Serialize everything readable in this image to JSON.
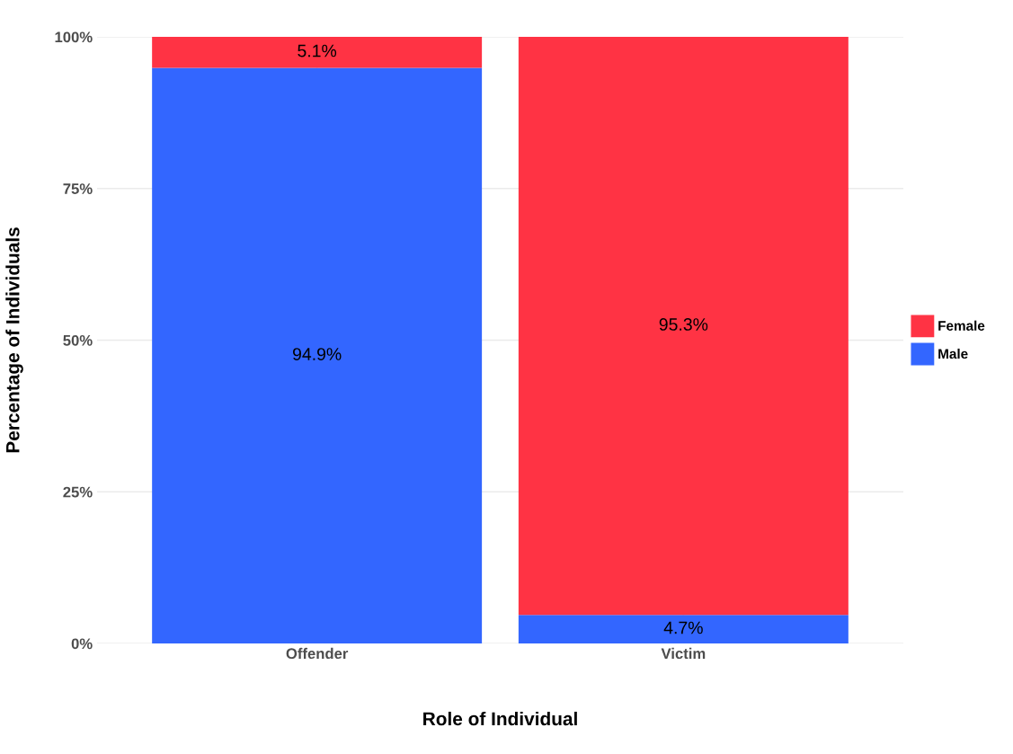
{
  "chart_data": {
    "type": "bar",
    "stacked": true,
    "xlabel": "Role of Individual",
    "ylabel": "Percentage of Individuals",
    "categories": [
      "Offender",
      "Victim"
    ],
    "series": [
      {
        "name": "Male",
        "color": "#3366ff",
        "values": [
          94.9,
          4.7
        ],
        "value_labels": [
          "94.9%",
          "4.7%"
        ]
      },
      {
        "name": "Female",
        "color": "#ff3344",
        "values": [
          5.1,
          95.3
        ],
        "value_labels": [
          "5.1%",
          "95.3%"
        ]
      }
    ],
    "ylim": [
      0,
      100
    ],
    "yticks": [
      {
        "value": 0,
        "label": "0%"
      },
      {
        "value": 25,
        "label": "25%"
      },
      {
        "value": 50,
        "label": "50%"
      },
      {
        "value": 75,
        "label": "75%"
      },
      {
        "value": 100,
        "label": "100%"
      }
    ],
    "grid": true,
    "legend": "right"
  }
}
